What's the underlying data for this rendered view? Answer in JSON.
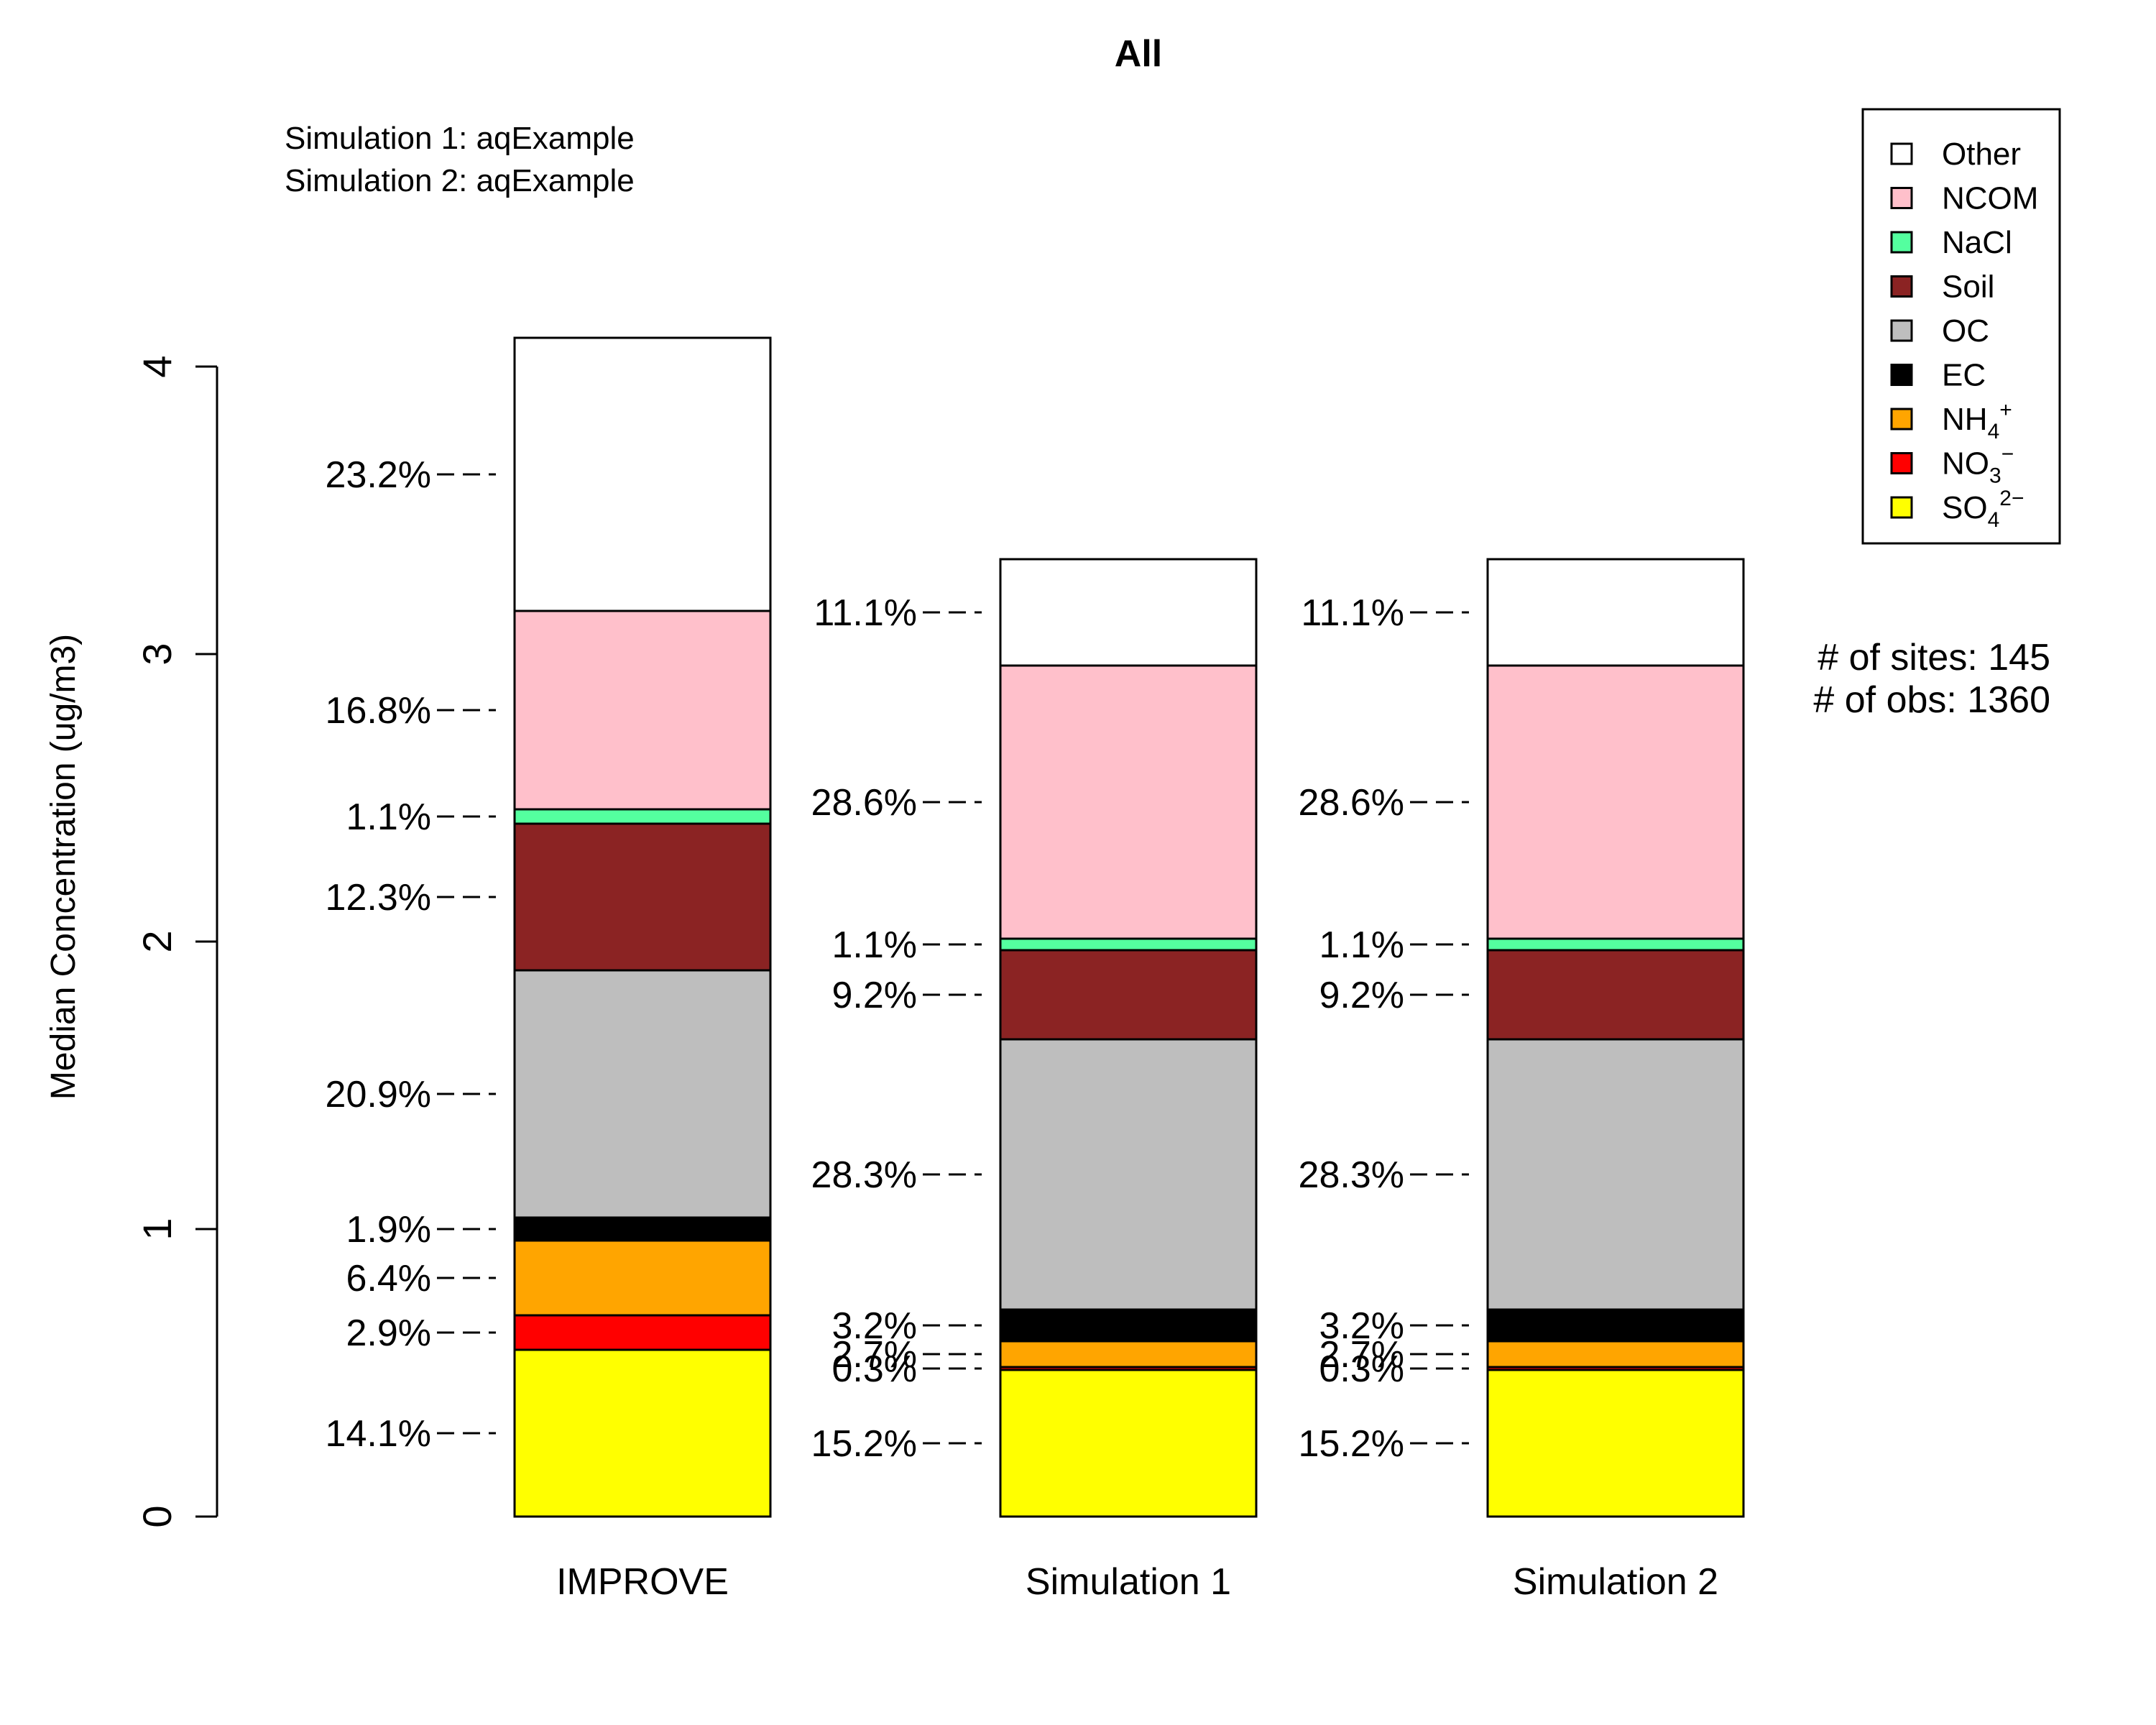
{
  "chart_data": {
    "type": "bar",
    "stacked": true,
    "title": "All",
    "ylabel": "Median Concentration (ug/m3)",
    "ylim": [
      0,
      4
    ],
    "yticks": [
      "0",
      "1",
      "2",
      "3",
      "4"
    ],
    "categories": [
      "IMPROVE",
      "Simulation 1",
      "Simulation 2"
    ],
    "simulation_notes": [
      "Simulation 1: aqExample",
      "Simulation 2: aqExample"
    ],
    "site_info": [
      "# of sites: 145",
      "# of obs: 1360"
    ],
    "legend_position": "top-right",
    "series": [
      {
        "name": "SO4",
        "label": "SO",
        "sub": "4",
        "sup": "2−",
        "color": "#FFFF00",
        "values": [
          0.58,
          0.51,
          0.51
        ],
        "pct": [
          "14.1%",
          "15.2%",
          "15.2%"
        ]
      },
      {
        "name": "NO3",
        "label": "NO",
        "sub": "3",
        "sup": "−",
        "color": "#FF0000",
        "values": [
          0.12,
          0.01,
          0.01
        ],
        "pct": [
          "2.9%",
          "0.3%",
          "0.3%"
        ]
      },
      {
        "name": "NH4",
        "label": "NH",
        "sub": "4",
        "sup": "+",
        "color": "#FFA500",
        "values": [
          0.26,
          0.09,
          0.09
        ],
        "pct": [
          "6.4%",
          "2.7%",
          "2.7%"
        ]
      },
      {
        "name": "EC",
        "label": "EC",
        "color": "#000000",
        "values": [
          0.08,
          0.11,
          0.11
        ],
        "pct": [
          "1.9%",
          "3.2%",
          "3.2%"
        ]
      },
      {
        "name": "OC",
        "label": "OC",
        "color": "#BEBEBE",
        "values": [
          0.86,
          0.94,
          0.94
        ],
        "pct": [
          "20.9%",
          "28.3%",
          "28.3%"
        ]
      },
      {
        "name": "Soil",
        "label": "Soil",
        "color": "#8B2323",
        "values": [
          0.51,
          0.31,
          0.31
        ],
        "pct": [
          "12.3%",
          "9.2%",
          "9.2%"
        ]
      },
      {
        "name": "NaCl",
        "label": "NaCl",
        "color": "#54FF9F",
        "values": [
          0.05,
          0.04,
          0.04
        ],
        "pct": [
          "1.1%",
          "1.1%",
          "1.1%"
        ]
      },
      {
        "name": "NCOM",
        "label": "NCOM",
        "color": "#FFC0CB",
        "values": [
          0.69,
          0.95,
          0.95
        ],
        "pct": [
          "16.8%",
          "28.6%",
          "28.6%"
        ]
      },
      {
        "name": "Other",
        "label": "Other",
        "color": "#FFFFFF",
        "values": [
          0.95,
          0.37,
          0.37
        ],
        "pct": [
          "23.2%",
          "11.1%",
          "11.1%"
        ]
      }
    ]
  }
}
